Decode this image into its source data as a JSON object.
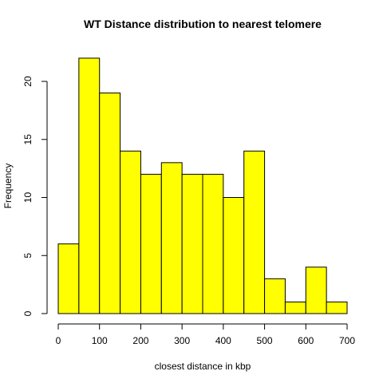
{
  "chart_data": {
    "type": "bar",
    "title": "WT Distance distribution to nearest telomere",
    "xlabel": "closest distance in kbp",
    "ylabel": "Frequency",
    "bin_edges": [
      0,
      50,
      100,
      150,
      200,
      250,
      300,
      350,
      400,
      450,
      500,
      550,
      600,
      650,
      700
    ],
    "values": [
      6,
      22,
      19,
      14,
      12,
      13,
      12,
      12,
      10,
      14,
      3,
      1,
      4,
      1
    ],
    "xlim": [
      0,
      700
    ],
    "ylim": [
      0,
      22
    ],
    "xticks": [
      "0",
      "100",
      "200",
      "300",
      "400",
      "500",
      "600",
      "700"
    ],
    "yticks": [
      "0",
      "5",
      "10",
      "15",
      "20"
    ],
    "bar_color": "#ffff00",
    "grid": false,
    "legend": "none"
  }
}
